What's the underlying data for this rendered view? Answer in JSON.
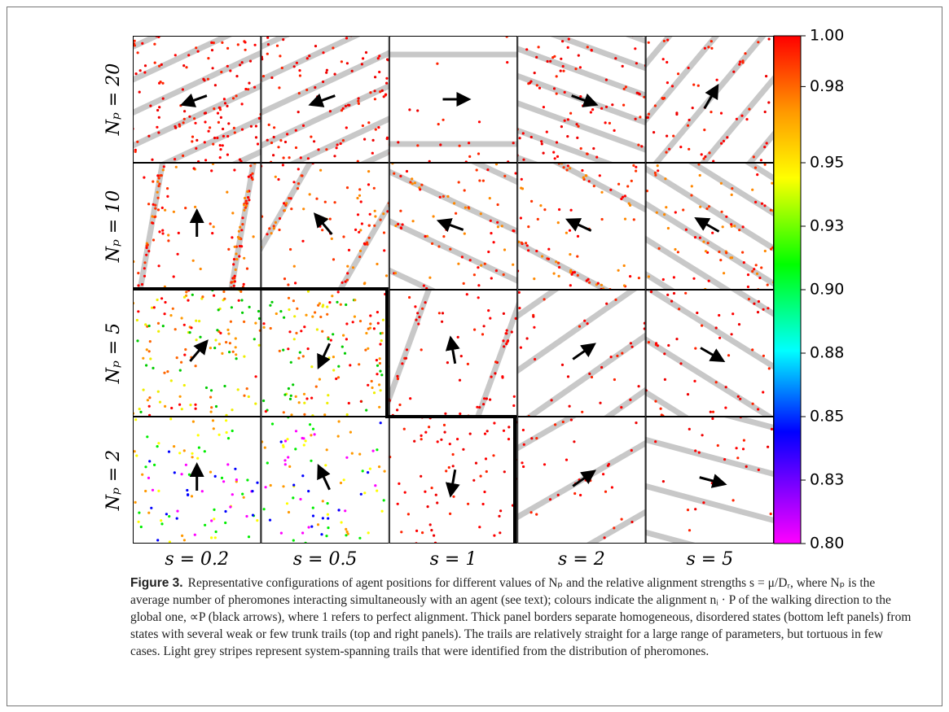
{
  "figure": {
    "row_labels": [
      "Nₚ = 20",
      "Nₚ = 10",
      "Nₚ = 5",
      "Nₚ = 2"
    ],
    "column_labels": [
      "s = 0.2",
      "s = 0.5",
      "s = 1",
      "s = 2",
      "s = 5"
    ],
    "colorbar": {
      "lim": [
        0.8,
        1
      ],
      "ticks": [
        {
          "value": 1,
          "label": "1.00"
        },
        0.98,
        0.95,
        {
          "value": 0.925,
          "label": "0.93"
        },
        {
          "value": 0.9,
          "label": "0.90"
        },
        {
          "value": 0.875,
          "label": "0.88"
        },
        0.85,
        {
          "value": 0.825,
          "label": "0.83"
        },
        {
          "value": 0.8,
          "label": "0.80"
        }
      ]
    }
  },
  "caption": {
    "label": "Figure 3.",
    "text": "Representative configurations of agent positions for different values of Nₚ and the relative alignment strengths s = μ/Dᵣ, where Nₚ is the average number of pheromones interacting simultaneously with an agent (see text); colours indicate the alignment nᵢ · P of the walking direction to the global one, ∝P (black arrows), where 1 refers to perfect alignment. Thick panel borders separate homogeneous, disordered states (bottom left panels) from states with several weak or few trunk trails (top and right panels). The trails are relatively straight for a large range of parameters, but tortuous in few cases. Light grey stripes represent system-spanning trails that were identified from the distribution of pheromones."
  }
}
